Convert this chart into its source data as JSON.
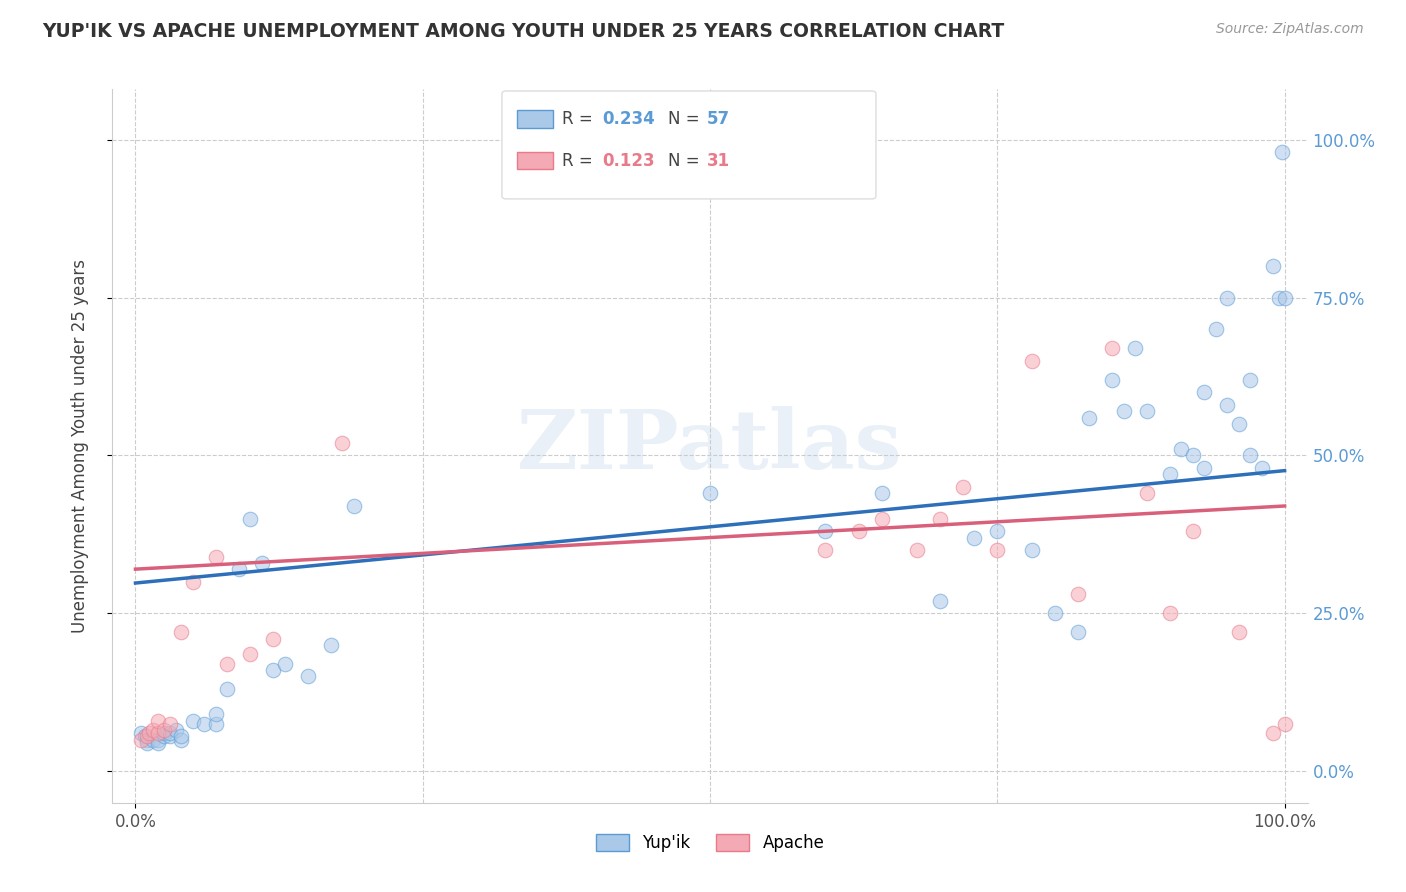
{
  "title": "YUP'IK VS APACHE UNEMPLOYMENT AMONG YOUTH UNDER 25 YEARS CORRELATION CHART",
  "source": "Source: ZipAtlas.com",
  "ylabel": "Unemployment Among Youth under 25 years",
  "xlim": [
    -0.02,
    1.02
  ],
  "ylim": [
    -0.05,
    1.08
  ],
  "xtick_positions": [
    0.0,
    1.0
  ],
  "xtick_labels": [
    "0.0%",
    "100.0%"
  ],
  "ytick_positions": [
    0.0,
    0.25,
    0.5,
    0.75,
    1.0
  ],
  "ytick_labels": [
    "0.0%",
    "25.0%",
    "50.0%",
    "75.0%",
    "100.0%"
  ],
  "yupik_color": "#aac8e8",
  "apache_color": "#f4aab4",
  "yupik_edge_color": "#5b9bd5",
  "apache_edge_color": "#e87a8a",
  "yupik_line_color": "#2e6fba",
  "apache_line_color": "#d9607a",
  "background_color": "#ffffff",
  "grid_color": "#cccccc",
  "watermark_text": "ZIPatlas",
  "marker_size": 110,
  "marker_alpha": 0.55,
  "R_yupik": 0.234,
  "N_yupik": 57,
  "R_apache": 0.123,
  "N_apache": 31,
  "legend_label_yupik": "Yup'ik",
  "legend_label_apache": "Apache",
  "yupik_x": [
    0.005,
    0.008,
    0.01,
    0.01,
    0.015,
    0.02,
    0.02,
    0.025,
    0.025,
    0.03,
    0.03,
    0.035,
    0.04,
    0.04,
    0.05,
    0.06,
    0.07,
    0.07,
    0.08,
    0.09,
    0.1,
    0.11,
    0.12,
    0.13,
    0.15,
    0.17,
    0.19,
    0.5,
    0.6,
    0.65,
    0.7,
    0.73,
    0.75,
    0.78,
    0.8,
    0.82,
    0.83,
    0.85,
    0.86,
    0.87,
    0.88,
    0.9,
    0.91,
    0.92,
    0.93,
    0.93,
    0.94,
    0.95,
    0.95,
    0.96,
    0.97,
    0.97,
    0.98,
    0.99,
    0.995,
    0.998,
    1.0
  ],
  "yupik_y": [
    0.06,
    0.055,
    0.05,
    0.045,
    0.05,
    0.05,
    0.045,
    0.055,
    0.06,
    0.055,
    0.06,
    0.065,
    0.05,
    0.055,
    0.08,
    0.075,
    0.075,
    0.09,
    0.13,
    0.32,
    0.4,
    0.33,
    0.16,
    0.17,
    0.15,
    0.2,
    0.42,
    0.44,
    0.38,
    0.44,
    0.27,
    0.37,
    0.38,
    0.35,
    0.25,
    0.22,
    0.56,
    0.62,
    0.57,
    0.67,
    0.57,
    0.47,
    0.51,
    0.5,
    0.6,
    0.48,
    0.7,
    0.75,
    0.58,
    0.55,
    0.62,
    0.5,
    0.48,
    0.8,
    0.75,
    0.98,
    0.75
  ],
  "apache_x": [
    0.005,
    0.01,
    0.012,
    0.015,
    0.02,
    0.02,
    0.025,
    0.03,
    0.04,
    0.05,
    0.07,
    0.08,
    0.1,
    0.12,
    0.18,
    0.6,
    0.63,
    0.65,
    0.68,
    0.7,
    0.72,
    0.75,
    0.78,
    0.82,
    0.85,
    0.88,
    0.9,
    0.92,
    0.96,
    0.99,
    1.0
  ],
  "apache_y": [
    0.05,
    0.055,
    0.06,
    0.065,
    0.06,
    0.08,
    0.065,
    0.075,
    0.22,
    0.3,
    0.34,
    0.17,
    0.185,
    0.21,
    0.52,
    0.35,
    0.38,
    0.4,
    0.35,
    0.4,
    0.45,
    0.35,
    0.65,
    0.28,
    0.67,
    0.44,
    0.25,
    0.38,
    0.22,
    0.06,
    0.075
  ],
  "line_yupik_x0": 0.0,
  "line_yupik_y0": 0.298,
  "line_yupik_x1": 1.0,
  "line_yupik_y1": 0.476,
  "line_apache_x0": 0.0,
  "line_apache_y0": 0.32,
  "line_apache_x1": 1.0,
  "line_apache_y1": 0.42
}
